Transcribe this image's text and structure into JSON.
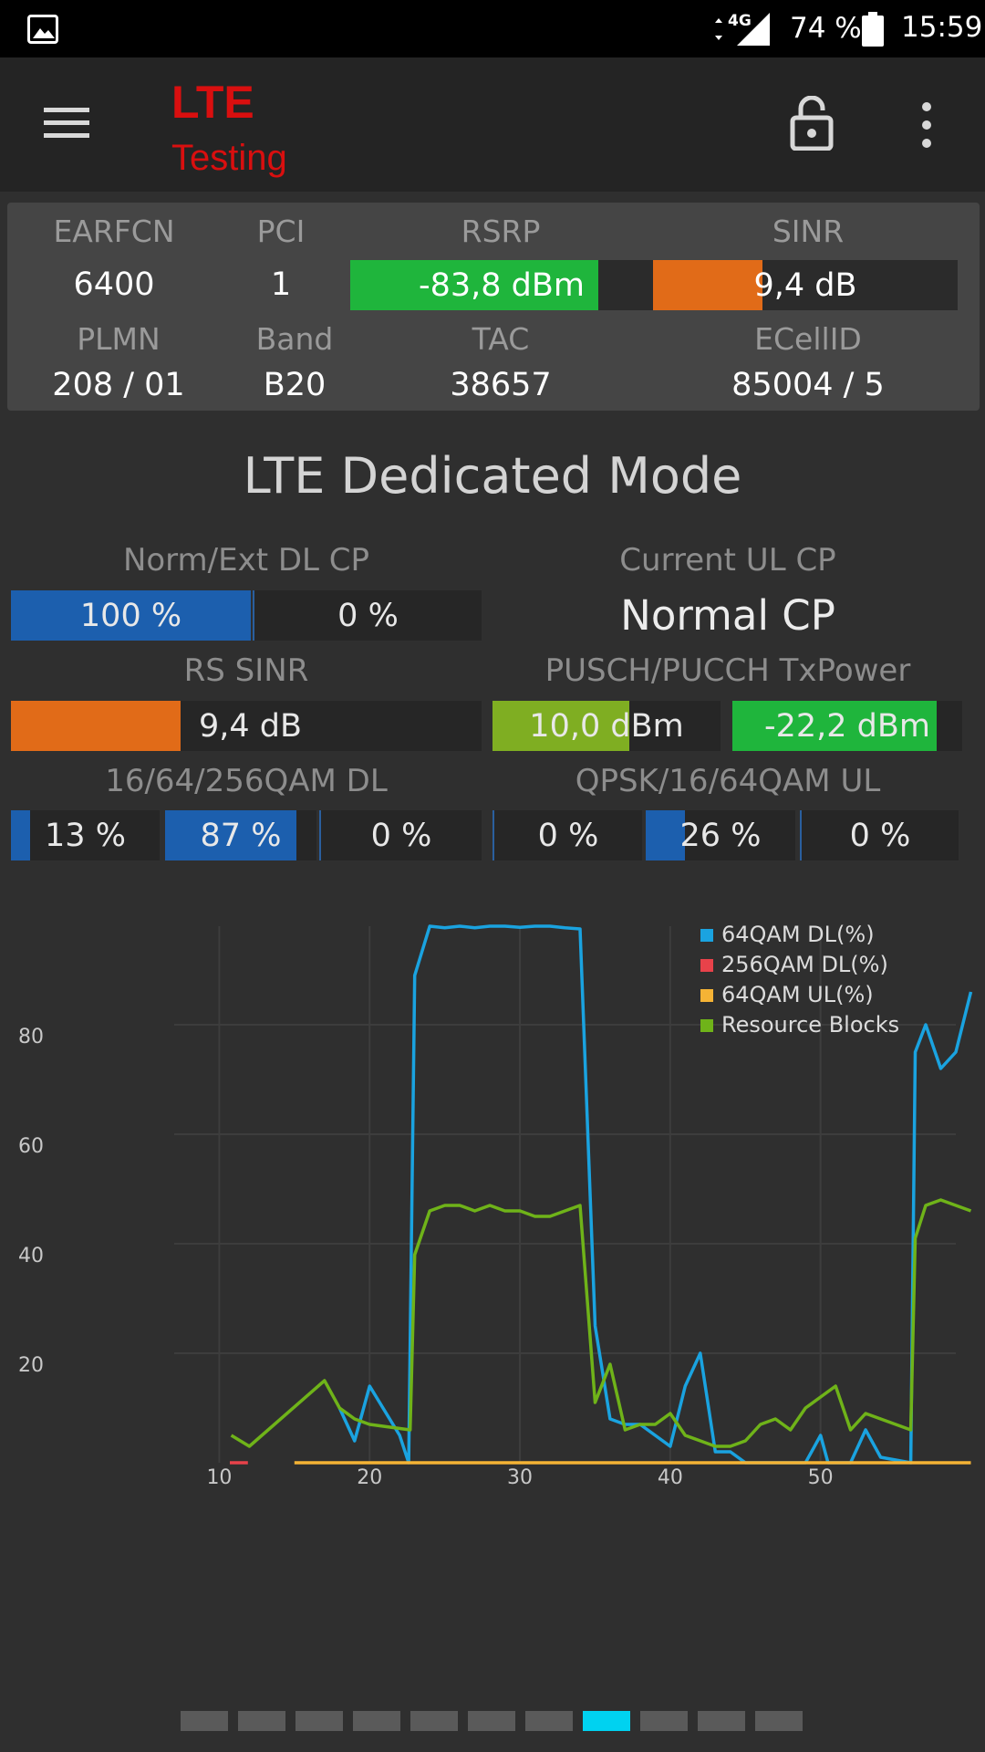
{
  "status_bar": {
    "network": "4G",
    "battery": "74 %",
    "time": "15:59"
  },
  "app_bar": {
    "title_line1": "LTE",
    "title_line2": "Testing",
    "menu_icon": "hamburger-menu-icon",
    "lock_icon": "unlock-icon",
    "more_icon": "more-vert-icon"
  },
  "cell_info": {
    "earfcn_label": "EARFCN",
    "earfcn": "6400",
    "pci_label": "PCI",
    "pci": "1",
    "rsrp_label": "RSRP",
    "rsrp": "-83,8 dBm",
    "rsrp_level": 0.82,
    "sinr_label": "SINR",
    "sinr": "9,4 dB",
    "sinr_level": 0.36,
    "plmn_label": "PLMN",
    "plmn": "208 / 01",
    "band_label": "Band",
    "band": "B20",
    "tac_label": "TAC",
    "tac": "38657",
    "ecellid_label": "ECellID",
    "ecellid": "85004 / 5",
    "colors": {
      "good": "#1fb53c",
      "mid": "#e16b18"
    }
  },
  "section_title": "LTE Dedicated Mode",
  "dl_cp": {
    "label": "Norm/Ext DL CP",
    "normal": "100 %",
    "normal_level": 1.0,
    "extended": "0 %",
    "extended_level": 0.0
  },
  "ul_cp": {
    "label": "Current UL CP",
    "value": "Normal CP"
  },
  "rs_sinr": {
    "label": "RS SINR",
    "value": "9,4 dB",
    "level": 0.36
  },
  "tx_power": {
    "label": "PUSCH/PUCCH TxPower",
    "pusch": "10,0 dBm",
    "pusch_level": 0.6,
    "pucch": "-22,2 dBm",
    "pucch_level": 0.89
  },
  "qam_dl": {
    "label": "16/64/256QAM DL",
    "values": [
      "13 %",
      "87 %",
      "0 %"
    ],
    "levels": [
      0.13,
      0.87,
      0.0
    ]
  },
  "qam_ul": {
    "label": "QPSK/16/64QAM UL",
    "values": [
      "0 %",
      "26 %",
      "0 %"
    ],
    "levels": [
      0.0,
      0.26,
      0.0
    ]
  },
  "chart_data": {
    "type": "line",
    "x_ticks": [
      "10",
      "20",
      "30",
      "40",
      "50"
    ],
    "y_ticks": [
      "20",
      "40",
      "60",
      "80"
    ],
    "xlim": [
      7,
      59
    ],
    "ylim": [
      0,
      98
    ],
    "grid": true,
    "legend_position": "top-right",
    "series": [
      {
        "name": "64QAM DL(%)",
        "color": "#1aa3e0",
        "points": [
          [
            18,
            10
          ],
          [
            19,
            4
          ],
          [
            20,
            14
          ],
          [
            22,
            5
          ],
          [
            22.6,
            0
          ],
          [
            23,
            89
          ],
          [
            24,
            98
          ],
          [
            25,
            97.7
          ],
          [
            26,
            98
          ],
          [
            27,
            97.7
          ],
          [
            28,
            98
          ],
          [
            29,
            98
          ],
          [
            30,
            97.8
          ],
          [
            31,
            98
          ],
          [
            32,
            98
          ],
          [
            33,
            97.7
          ],
          [
            34,
            97.5
          ],
          [
            35,
            25
          ],
          [
            36,
            8
          ],
          [
            37,
            7
          ],
          [
            38,
            7
          ],
          [
            39,
            5
          ],
          [
            40,
            3
          ],
          [
            41,
            14
          ],
          [
            42,
            20
          ],
          [
            43,
            2
          ],
          [
            44,
            2
          ],
          [
            45,
            0
          ],
          [
            49,
            0
          ],
          [
            50,
            5
          ],
          [
            50.5,
            0
          ],
          [
            52,
            0
          ],
          [
            53,
            6
          ],
          [
            54,
            1
          ],
          [
            56,
            0
          ],
          [
            56.3,
            75
          ],
          [
            57,
            80
          ],
          [
            58,
            72
          ],
          [
            59,
            75
          ],
          [
            60,
            86
          ]
        ]
      },
      {
        "name": "256QAM DL(%)",
        "color": "#e8424a",
        "points": [
          [
            10.7,
            0
          ],
          [
            11.9,
            0
          ]
        ]
      },
      {
        "name": "64QAM UL(%)",
        "color": "#f5b335",
        "points": [
          [
            15,
            0
          ],
          [
            60,
            0
          ]
        ]
      },
      {
        "name": "Resource Blocks",
        "color": "#6fb319",
        "points": [
          [
            10.8,
            5
          ],
          [
            12,
            3
          ],
          [
            17,
            15
          ],
          [
            18,
            10
          ],
          [
            19,
            8
          ],
          [
            20,
            7
          ],
          [
            22.7,
            6
          ],
          [
            23,
            38
          ],
          [
            24,
            46
          ],
          [
            25,
            47
          ],
          [
            26,
            47
          ],
          [
            27,
            46
          ],
          [
            28,
            47
          ],
          [
            29,
            46
          ],
          [
            30,
            46
          ],
          [
            31,
            45
          ],
          [
            32,
            45
          ],
          [
            33,
            46
          ],
          [
            34,
            47
          ],
          [
            35,
            11
          ],
          [
            36,
            18
          ],
          [
            37,
            6
          ],
          [
            38,
            7
          ],
          [
            39,
            7
          ],
          [
            40,
            9
          ],
          [
            41,
            5
          ],
          [
            42,
            4
          ],
          [
            43,
            3
          ],
          [
            44,
            3
          ],
          [
            45,
            4
          ],
          [
            46,
            7
          ],
          [
            47,
            8
          ],
          [
            48,
            6
          ],
          [
            49,
            10
          ],
          [
            50,
            12
          ],
          [
            51,
            14
          ],
          [
            52,
            6
          ],
          [
            53,
            9
          ],
          [
            54,
            8
          ],
          [
            56,
            6
          ],
          [
            56.3,
            41
          ],
          [
            57,
            47
          ],
          [
            58,
            48
          ],
          [
            59,
            47
          ],
          [
            60,
            46
          ]
        ]
      }
    ]
  },
  "pager": {
    "count": 11,
    "active_index": 7
  }
}
